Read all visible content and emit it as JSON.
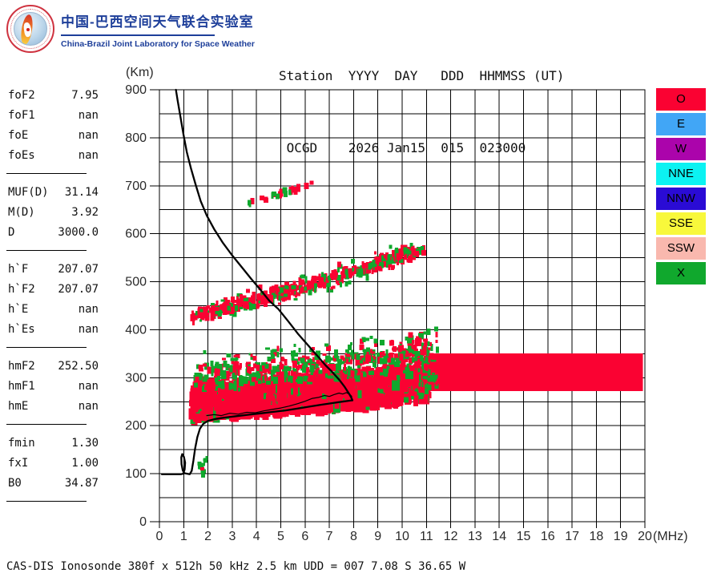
{
  "branding": {
    "org_zh": "中国-巴西空间天气联合实验室",
    "org_en": "China-Brazil Joint Laboratory for Space Weather"
  },
  "header": {
    "line1": "Station  YYYY  DAY   DDD  HHMMSS (UT)",
    "line2": " OCGD    2026 Jan15  015  023000",
    "station": "OCGD",
    "year": "2026",
    "date": "Jan15",
    "day_of_year": "015",
    "time_ut": "023000"
  },
  "params": {
    "groups": [
      {
        "rows": [
          [
            "foF2",
            "7.95"
          ],
          [
            "foF1",
            "nan"
          ],
          [
            "foE",
            "nan"
          ],
          [
            "foEs",
            "nan"
          ]
        ]
      },
      {
        "rows": [
          [
            "MUF(D)",
            "31.14"
          ],
          [
            "M(D)",
            "3.92"
          ],
          [
            "D",
            "3000.0"
          ]
        ]
      },
      {
        "rows": [
          [
            "h`F",
            "207.07"
          ],
          [
            "h`F2",
            "207.07"
          ],
          [
            "h`E",
            "nan"
          ],
          [
            "h`Es",
            "nan"
          ]
        ]
      },
      {
        "rows": [
          [
            "hmF2",
            "252.50"
          ],
          [
            "hmF1",
            "nan"
          ],
          [
            "hmE",
            "nan"
          ]
        ]
      },
      {
        "rows": [
          [
            "fmin",
            "1.30"
          ],
          [
            "fxI",
            "1.00"
          ],
          [
            "B0",
            "34.87"
          ]
        ]
      }
    ]
  },
  "footer": {
    "text": "CAS-DIS Ionosonde 380f x 512h 50 kHz 2.5 km UDD = 007 7.08 S 36.65 W"
  },
  "chart_data": {
    "type": "scatter",
    "title": "Ionogram OCGD 2026 Jan15 015 023000 UT",
    "xlabel": "(MHz)",
    "ylabel": "(Km)",
    "xlim": [
      0,
      20
    ],
    "ylim": [
      0,
      900
    ],
    "x_tick_step": 1,
    "y_grid_step": 50,
    "y_label_step": 100,
    "grid": true,
    "legend_position": "right",
    "colors": {
      "o_echo": "#fa0232",
      "x_echo": "#10a82d",
      "profile": "#000000",
      "grid": "#000000",
      "axis_text": "#2a2a2a"
    },
    "legend": [
      {
        "label": "O",
        "color": "#fa0232"
      },
      {
        "label": "E",
        "color": "#41a6f6"
      },
      {
        "label": "W",
        "color": "#ab04ab"
      },
      {
        "label": "NNE",
        "color": "#0cf2f2"
      },
      {
        "label": "NNW",
        "color": "#2a0bd5"
      },
      {
        "label": "SSE",
        "color": "#f8f83b"
      },
      {
        "label": "SSW",
        "color": "#f9b8ae"
      },
      {
        "label": "X",
        "color": "#10a82d"
      }
    ],
    "seed": 11,
    "traces": [
      {
        "name": "multi-hop-echo-660-710km",
        "f": [
          3.45,
          6.5
        ],
        "ref": 3.45,
        "c": [
          660,
          15.5,
          0
        ],
        "off": [
          0,
          0
        ],
        "jit": 5,
        "n": 22,
        "w": [
          3,
          6
        ],
        "h": [
          5,
          10
        ],
        "red": 0.55
      },
      {
        "name": "second-hop-echo-430-570km",
        "f": [
          1.35,
          10.9
        ],
        "ref": 1.35,
        "c": [
          428,
          12,
          0.3
        ],
        "off": [
          -10,
          10
        ],
        "jit": 6,
        "n": 480,
        "w": [
          3,
          6
        ],
        "h": [
          4,
          10
        ],
        "red": 0.7
      },
      {
        "name": "second-hop-outliers",
        "f": [
          1.5,
          10.8
        ],
        "ref": 1.35,
        "c": [
          428,
          12,
          0.3
        ],
        "off": [
          -28,
          28
        ],
        "jit": 0,
        "n": 60,
        "w": [
          3,
          5
        ],
        "h": [
          3,
          7
        ],
        "red": 0.5
      },
      {
        "name": "f-trace-core",
        "f": [
          1.32,
          11.05
        ],
        "ref": 1.3,
        "c": [
          211,
          3.4,
          0.08
        ],
        "off": [
          0,
          72
        ],
        "jit": 3,
        "n": 1500,
        "w": [
          5,
          11
        ],
        "h": [
          6,
          14
        ],
        "red": 0.9
      },
      {
        "name": "f-trace-upper-speckle",
        "f": [
          1.45,
          11.05
        ],
        "ref": 1.3,
        "c": [
          211,
          3.4,
          0.08
        ],
        "off": [
          62,
          112
        ],
        "jit": 5,
        "n": 430,
        "w": [
          3,
          7
        ],
        "h": [
          4,
          9
        ],
        "red": 0.55
      },
      {
        "name": "f-trace-top-outliers",
        "f": [
          1.8,
          11.1
        ],
        "ref": 1.3,
        "c": [
          211,
          3.4,
          0.08
        ],
        "off": [
          105,
          140
        ],
        "jit": 6,
        "n": 85,
        "w": [
          3,
          6
        ],
        "h": [
          3,
          7
        ],
        "red": 0.45
      },
      {
        "name": "block-corner-speckle",
        "f": [
          10.3,
          11.45
        ],
        "ref": 10.3,
        "c": [
          330,
          10,
          0
        ],
        "off": [
          -75,
          55
        ],
        "jit": 6,
        "n": 90,
        "w": [
          3,
          7
        ],
        "h": [
          4,
          9
        ],
        "red": 0.5
      },
      {
        "name": "es-low-green-cluster",
        "f": [
          1.62,
          1.95
        ],
        "ref": 1.62,
        "c": [
          112,
          0,
          0
        ],
        "off": [
          -16,
          20
        ],
        "jit": 4,
        "n": 13,
        "w": [
          3,
          5
        ],
        "h": [
          4,
          8
        ],
        "red": 0.07
      }
    ],
    "solid_block": {
      "name": "saturated-o-echo-block",
      "f": [
        11.02,
        19.92
      ],
      "h": [
        272,
        351
      ]
    },
    "profile_lines": {
      "bottomside": [
        [
          0.1,
          99
        ],
        [
          0.88,
          99
        ],
        [
          0.98,
          100
        ],
        [
          1.04,
          109
        ],
        [
          1.06,
          123
        ],
        [
          1.01,
          135
        ],
        [
          0.94,
          141
        ],
        [
          0.9,
          134
        ],
        [
          0.91,
          120
        ],
        [
          0.96,
          107
        ],
        [
          1.03,
          101
        ],
        [
          1.25,
          99
        ],
        [
          1.33,
          106
        ],
        [
          1.4,
          127
        ],
        [
          1.47,
          152
        ],
        [
          1.56,
          176
        ],
        [
          1.67,
          194
        ],
        [
          1.81,
          204
        ],
        [
          2.0,
          210
        ],
        [
          2.3,
          214
        ],
        [
          2.7,
          217
        ],
        [
          3.2,
          220
        ],
        [
          3.7,
          223
        ],
        [
          4.2,
          226
        ],
        [
          4.7,
          229
        ],
        [
          5.2,
          232
        ],
        [
          5.7,
          236
        ],
        [
          6.2,
          240
        ],
        [
          6.7,
          244
        ],
        [
          7.1,
          247
        ],
        [
          7.5,
          250
        ],
        [
          7.8,
          252
        ],
        [
          7.95,
          253
        ]
      ],
      "topside": [
        [
          7.95,
          253
        ],
        [
          7.9,
          259
        ],
        [
          7.81,
          267
        ],
        [
          7.63,
          281
        ],
        [
          7.42,
          295
        ],
        [
          7.12,
          312
        ],
        [
          6.84,
          326
        ],
        [
          6.5,
          346
        ],
        [
          6.1,
          369
        ],
        [
          5.7,
          392
        ],
        [
          5.3,
          418
        ],
        [
          4.9,
          443
        ],
        [
          4.53,
          460
        ],
        [
          4.15,
          484
        ],
        [
          3.8,
          505
        ],
        [
          3.4,
          530
        ],
        [
          2.98,
          556
        ],
        [
          2.6,
          582
        ],
        [
          2.25,
          610
        ],
        [
          1.95,
          638
        ],
        [
          1.7,
          668
        ],
        [
          1.49,
          703
        ],
        [
          1.3,
          736
        ],
        [
          1.13,
          770
        ],
        [
          0.99,
          807
        ],
        [
          0.86,
          845
        ],
        [
          0.75,
          878
        ],
        [
          0.68,
          900
        ]
      ],
      "virtual_height_trace": [
        [
          1.95,
          221
        ],
        [
          2.25,
          223
        ],
        [
          2.55,
          221
        ],
        [
          2.9,
          226
        ],
        [
          3.25,
          224
        ],
        [
          3.6,
          228
        ],
        [
          3.95,
          227
        ],
        [
          4.3,
          231
        ],
        [
          4.65,
          234
        ],
        [
          5.0,
          237
        ],
        [
          5.35,
          241
        ],
        [
          5.7,
          246
        ],
        [
          6.0,
          251
        ],
        [
          6.3,
          257
        ],
        [
          6.55,
          259
        ],
        [
          6.8,
          263
        ],
        [
          7.0,
          261
        ],
        [
          7.2,
          265
        ],
        [
          7.4,
          268
        ],
        [
          7.55,
          266
        ],
        [
          7.7,
          269
        ],
        [
          7.85,
          265
        ],
        [
          7.92,
          261
        ]
      ]
    }
  }
}
